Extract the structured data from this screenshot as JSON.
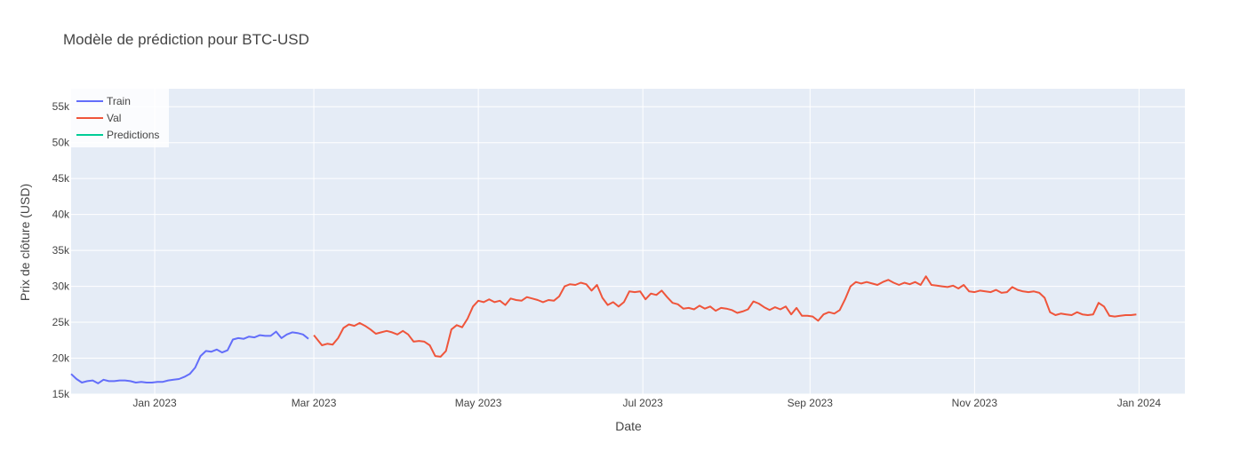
{
  "chart_data": {
    "type": "line",
    "title": "Modèle de prédiction pour BTC-USD",
    "xlabel": "Date",
    "ylabel": "Prix de clôture (USD)",
    "x_range": [
      "2022-12-01",
      "2024-01-18"
    ],
    "ylim": [
      15000,
      57500
    ],
    "grid": true,
    "legend_position": "top-left",
    "background": "#e5ecf6",
    "x_ticks": [
      {
        "date": "2023-01-01",
        "label": "Jan 2023"
      },
      {
        "date": "2023-03-01",
        "label": "Mar 2023"
      },
      {
        "date": "2023-05-01",
        "label": "May 2023"
      },
      {
        "date": "2023-07-01",
        "label": "Jul 2023"
      },
      {
        "date": "2023-09-01",
        "label": "Sep 2023"
      },
      {
        "date": "2023-11-01",
        "label": "Nov 2023"
      },
      {
        "date": "2024-01-01",
        "label": "Jan 2024"
      }
    ],
    "y_ticks": [
      {
        "value": 15000,
        "label": "15k"
      },
      {
        "value": 20000,
        "label": "20k"
      },
      {
        "value": 25000,
        "label": "25k"
      },
      {
        "value": 30000,
        "label": "30k"
      },
      {
        "value": 35000,
        "label": "35k"
      },
      {
        "value": 40000,
        "label": "40k"
      },
      {
        "value": 45000,
        "label": "45k"
      },
      {
        "value": 50000,
        "label": "50k"
      },
      {
        "value": 55000,
        "label": "55k"
      }
    ],
    "series": [
      {
        "name": "Train",
        "color": "#636efa",
        "points": [
          [
            "2022-12-01",
            17800
          ],
          [
            "2022-12-03",
            17100
          ],
          [
            "2022-12-05",
            16600
          ],
          [
            "2022-12-07",
            16800
          ],
          [
            "2022-12-09",
            16900
          ],
          [
            "2022-12-11",
            16500
          ],
          [
            "2022-12-13",
            17000
          ],
          [
            "2022-12-15",
            16800
          ],
          [
            "2022-12-17",
            16800
          ],
          [
            "2022-12-19",
            16900
          ],
          [
            "2022-12-21",
            16900
          ],
          [
            "2022-12-23",
            16800
          ],
          [
            "2022-12-25",
            16600
          ],
          [
            "2022-12-27",
            16700
          ],
          [
            "2022-12-29",
            16600
          ],
          [
            "2022-12-31",
            16600
          ],
          [
            "2023-01-02",
            16700
          ],
          [
            "2023-01-04",
            16700
          ],
          [
            "2023-01-06",
            16900
          ],
          [
            "2023-01-08",
            17000
          ],
          [
            "2023-01-10",
            17100
          ],
          [
            "2023-01-12",
            17400
          ],
          [
            "2023-01-14",
            17800
          ],
          [
            "2023-01-16",
            18700
          ],
          [
            "2023-01-18",
            20300
          ],
          [
            "2023-01-20",
            21000
          ],
          [
            "2023-01-22",
            20900
          ],
          [
            "2023-01-24",
            21200
          ],
          [
            "2023-01-26",
            20800
          ],
          [
            "2023-01-28",
            21100
          ],
          [
            "2023-01-30",
            22600
          ],
          [
            "2023-02-01",
            22800
          ],
          [
            "2023-02-03",
            22700
          ],
          [
            "2023-02-05",
            23000
          ],
          [
            "2023-02-07",
            22900
          ],
          [
            "2023-02-09",
            23200
          ],
          [
            "2023-02-11",
            23100
          ],
          [
            "2023-02-13",
            23100
          ],
          [
            "2023-02-15",
            23700
          ],
          [
            "2023-02-17",
            22800
          ],
          [
            "2023-02-19",
            23300
          ],
          [
            "2023-02-21",
            23600
          ],
          [
            "2023-02-23",
            23500
          ],
          [
            "2023-02-25",
            23300
          ],
          [
            "2023-02-27",
            22700
          ]
        ]
      },
      {
        "name": "Val",
        "color": "#ef553b",
        "points": [
          [
            "2023-02-29b",
            23200
          ],
          [
            "2023-03-04",
            21800
          ],
          [
            "2023-03-06",
            22000
          ],
          [
            "2023-03-08",
            21900
          ],
          [
            "2023-03-10",
            22800
          ],
          [
            "2023-03-12",
            24200
          ],
          [
            "2023-03-14",
            24700
          ],
          [
            "2023-03-16",
            24500
          ],
          [
            "2023-03-18",
            24900
          ],
          [
            "2023-03-20",
            24500
          ],
          [
            "2023-03-22",
            24000
          ],
          [
            "2023-03-24",
            23400
          ],
          [
            "2023-03-26",
            23600
          ],
          [
            "2023-03-28",
            23800
          ],
          [
            "2023-03-30",
            23600
          ],
          [
            "2023-04-01",
            23300
          ],
          [
            "2023-04-03",
            23800
          ],
          [
            "2023-04-05",
            23300
          ],
          [
            "2023-04-07",
            22300
          ],
          [
            "2023-04-09",
            22400
          ],
          [
            "2023-04-11",
            22300
          ],
          [
            "2023-04-13",
            21800
          ],
          [
            "2023-04-15",
            20300
          ],
          [
            "2023-04-17",
            20200
          ],
          [
            "2023-04-19",
            21000
          ],
          [
            "2023-04-21",
            24000
          ],
          [
            "2023-04-23",
            24600
          ],
          [
            "2023-04-25",
            24300
          ],
          [
            "2023-04-27",
            25500
          ],
          [
            "2023-04-29",
            27200
          ],
          [
            "2023-05-01",
            28000
          ],
          [
            "2023-05-03",
            27800
          ],
          [
            "2023-05-05",
            28200
          ],
          [
            "2023-05-07",
            27800
          ],
          [
            "2023-05-09",
            28000
          ],
          [
            "2023-05-11",
            27400
          ],
          [
            "2023-05-13",
            28300
          ],
          [
            "2023-05-15",
            28100
          ],
          [
            "2023-05-17",
            28000
          ],
          [
            "2023-05-19",
            28500
          ],
          [
            "2023-05-21",
            28300
          ],
          [
            "2023-05-23",
            28100
          ],
          [
            "2023-05-25",
            27800
          ],
          [
            "2023-05-27",
            28100
          ],
          [
            "2023-05-29",
            28000
          ],
          [
            "2023-05-31",
            28600
          ],
          [
            "2023-06-02",
            30000
          ],
          [
            "2023-06-04",
            30300
          ],
          [
            "2023-06-06",
            30200
          ],
          [
            "2023-06-08",
            30500
          ],
          [
            "2023-06-10",
            30300
          ],
          [
            "2023-06-12",
            29400
          ],
          [
            "2023-06-14",
            30200
          ],
          [
            "2023-06-16",
            28400
          ],
          [
            "2023-06-18",
            27400
          ],
          [
            "2023-06-20",
            27800
          ],
          [
            "2023-06-22",
            27200
          ],
          [
            "2023-06-24",
            27800
          ],
          [
            "2023-06-26",
            29300
          ],
          [
            "2023-06-28",
            29200
          ],
          [
            "2023-06-30",
            29300
          ],
          [
            "2023-07-02",
            28200
          ],
          [
            "2023-07-04",
            29000
          ],
          [
            "2023-07-06",
            28800
          ],
          [
            "2023-07-08",
            29400
          ],
          [
            "2023-07-10",
            28500
          ],
          [
            "2023-07-12",
            27700
          ],
          [
            "2023-07-14",
            27500
          ],
          [
            "2023-07-16",
            26900
          ],
          [
            "2023-07-18",
            27000
          ],
          [
            "2023-07-20",
            26800
          ],
          [
            "2023-07-22",
            27300
          ],
          [
            "2023-07-24",
            26900
          ],
          [
            "2023-07-26",
            27200
          ],
          [
            "2023-07-28",
            26600
          ],
          [
            "2023-07-30",
            27000
          ],
          [
            "2023-08-01",
            26900
          ],
          [
            "2023-08-03",
            26700
          ],
          [
            "2023-08-05",
            26300
          ],
          [
            "2023-08-07",
            26500
          ],
          [
            "2023-08-09",
            26800
          ],
          [
            "2023-08-11",
            27900
          ],
          [
            "2023-08-13",
            27600
          ],
          [
            "2023-08-15",
            27100
          ],
          [
            "2023-08-17",
            26700
          ],
          [
            "2023-08-19",
            27100
          ],
          [
            "2023-08-21",
            26800
          ],
          [
            "2023-08-23",
            27200
          ],
          [
            "2023-08-25",
            26100
          ],
          [
            "2023-08-27",
            27000
          ],
          [
            "2023-08-29",
            25900
          ],
          [
            "2023-08-31",
            25900
          ],
          [
            "2023-09-02",
            25800
          ],
          [
            "2023-09-04",
            25200
          ],
          [
            "2023-09-06",
            26100
          ],
          [
            "2023-09-08",
            26400
          ],
          [
            "2023-09-10",
            26200
          ],
          [
            "2023-09-12",
            26700
          ],
          [
            "2023-09-14",
            28200
          ],
          [
            "2023-09-16",
            30000
          ],
          [
            "2023-09-18",
            30600
          ],
          [
            "2023-09-20",
            30400
          ],
          [
            "2023-09-22",
            30600
          ],
          [
            "2023-09-24",
            30400
          ],
          [
            "2023-09-26",
            30200
          ],
          [
            "2023-09-28",
            30600
          ],
          [
            "2023-09-30",
            30900
          ],
          [
            "2023-10-02",
            30500
          ],
          [
            "2023-10-04",
            30200
          ],
          [
            "2023-10-06",
            30500
          ],
          [
            "2023-10-08",
            30300
          ],
          [
            "2023-10-10",
            30600
          ],
          [
            "2023-10-12",
            30200
          ],
          [
            "2023-10-14",
            31400
          ],
          [
            "2023-10-16",
            30200
          ],
          [
            "2023-10-18",
            30100
          ],
          [
            "2023-10-20",
            30000
          ],
          [
            "2023-10-22",
            29900
          ],
          [
            "2023-10-24",
            30100
          ],
          [
            "2023-10-26",
            29700
          ],
          [
            "2023-10-28",
            30200
          ],
          [
            "2023-10-30",
            29300
          ],
          [
            "2023-11-01",
            29200
          ],
          [
            "2023-11-03",
            29400
          ],
          [
            "2023-11-05",
            29300
          ],
          [
            "2023-11-07",
            29200
          ],
          [
            "2023-11-09",
            29500
          ],
          [
            "2023-11-11",
            29100
          ],
          [
            "2023-11-13",
            29200
          ],
          [
            "2023-11-15",
            29900
          ],
          [
            "2023-11-17",
            29500
          ],
          [
            "2023-11-19",
            29300
          ],
          [
            "2023-11-21",
            29200
          ],
          [
            "2023-11-23",
            29300
          ],
          [
            "2023-11-25",
            29100
          ],
          [
            "2023-11-27",
            28400
          ],
          [
            "2023-11-29",
            26400
          ],
          [
            "2023-12-01",
            26000
          ],
          [
            "2023-12-03",
            26200
          ],
          [
            "2023-12-05",
            26100
          ],
          [
            "2023-12-07",
            26000
          ],
          [
            "2023-12-09",
            26400
          ],
          [
            "2023-12-11",
            26100
          ],
          [
            "2023-12-13",
            26000
          ],
          [
            "2023-12-15",
            26100
          ],
          [
            "2023-12-17",
            27700
          ],
          [
            "2023-12-19",
            27200
          ],
          [
            "2023-12-21",
            25900
          ],
          [
            "2023-12-23",
            25800
          ],
          [
            "2023-12-25",
            25900
          ],
          [
            "2023-12-27",
            26000
          ],
          [
            "2023-12-29",
            26000
          ],
          [
            "2023-12-31",
            26100
          ]
        ]
      },
      {
        "name": "Predictions",
        "color": "#00cc96",
        "points": []
      }
    ]
  },
  "legend": {
    "items": [
      "Train",
      "Val",
      "Predictions"
    ]
  }
}
